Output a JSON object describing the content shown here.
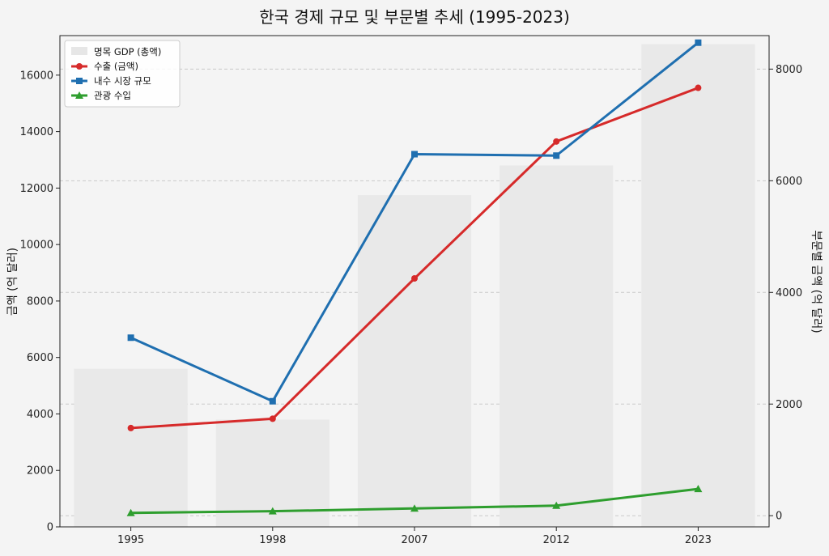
{
  "chart_data": {
    "type": "bar+line",
    "title": "한국 경제 규모 및 부문별 추세 (1995-2023)",
    "categories": [
      "1995",
      "1998",
      "2007",
      "2012",
      "2023"
    ],
    "ylabel": "금액 (억 달러)",
    "ylabel_right": "부문별 금액 (억 달러)",
    "ylim": [
      0,
      17400
    ],
    "ylim_right": [
      -200,
      8600
    ],
    "yticks": [
      0,
      2000,
      4000,
      6000,
      8000,
      10000,
      12000,
      14000,
      16000
    ],
    "yticks_right": [
      0,
      2000,
      4000,
      6000,
      8000
    ],
    "bars": {
      "name": "명목 GDP (총액)",
      "axis": "left",
      "values": [
        5600,
        3800,
        11750,
        12800,
        17100
      ],
      "color": "#e9e9e9"
    },
    "series": [
      {
        "name": "수출 (금액)",
        "axis": "left",
        "values": [
          3500,
          3830,
          8800,
          13650,
          15550
        ],
        "color": "#d62a2a",
        "marker": "circle"
      },
      {
        "name": "내수 시장 규모",
        "axis": "left",
        "values": [
          6700,
          4450,
          13200,
          13150,
          17150
        ],
        "color": "#1f6fb0",
        "marker": "square"
      },
      {
        "name": "관광 수입",
        "axis": "right",
        "values": [
          50,
          80,
          130,
          180,
          480
        ],
        "color": "#2e9e2e",
        "marker": "triangle"
      }
    ],
    "legend_position": "top-left",
    "grid": "horizontal-dashed"
  }
}
